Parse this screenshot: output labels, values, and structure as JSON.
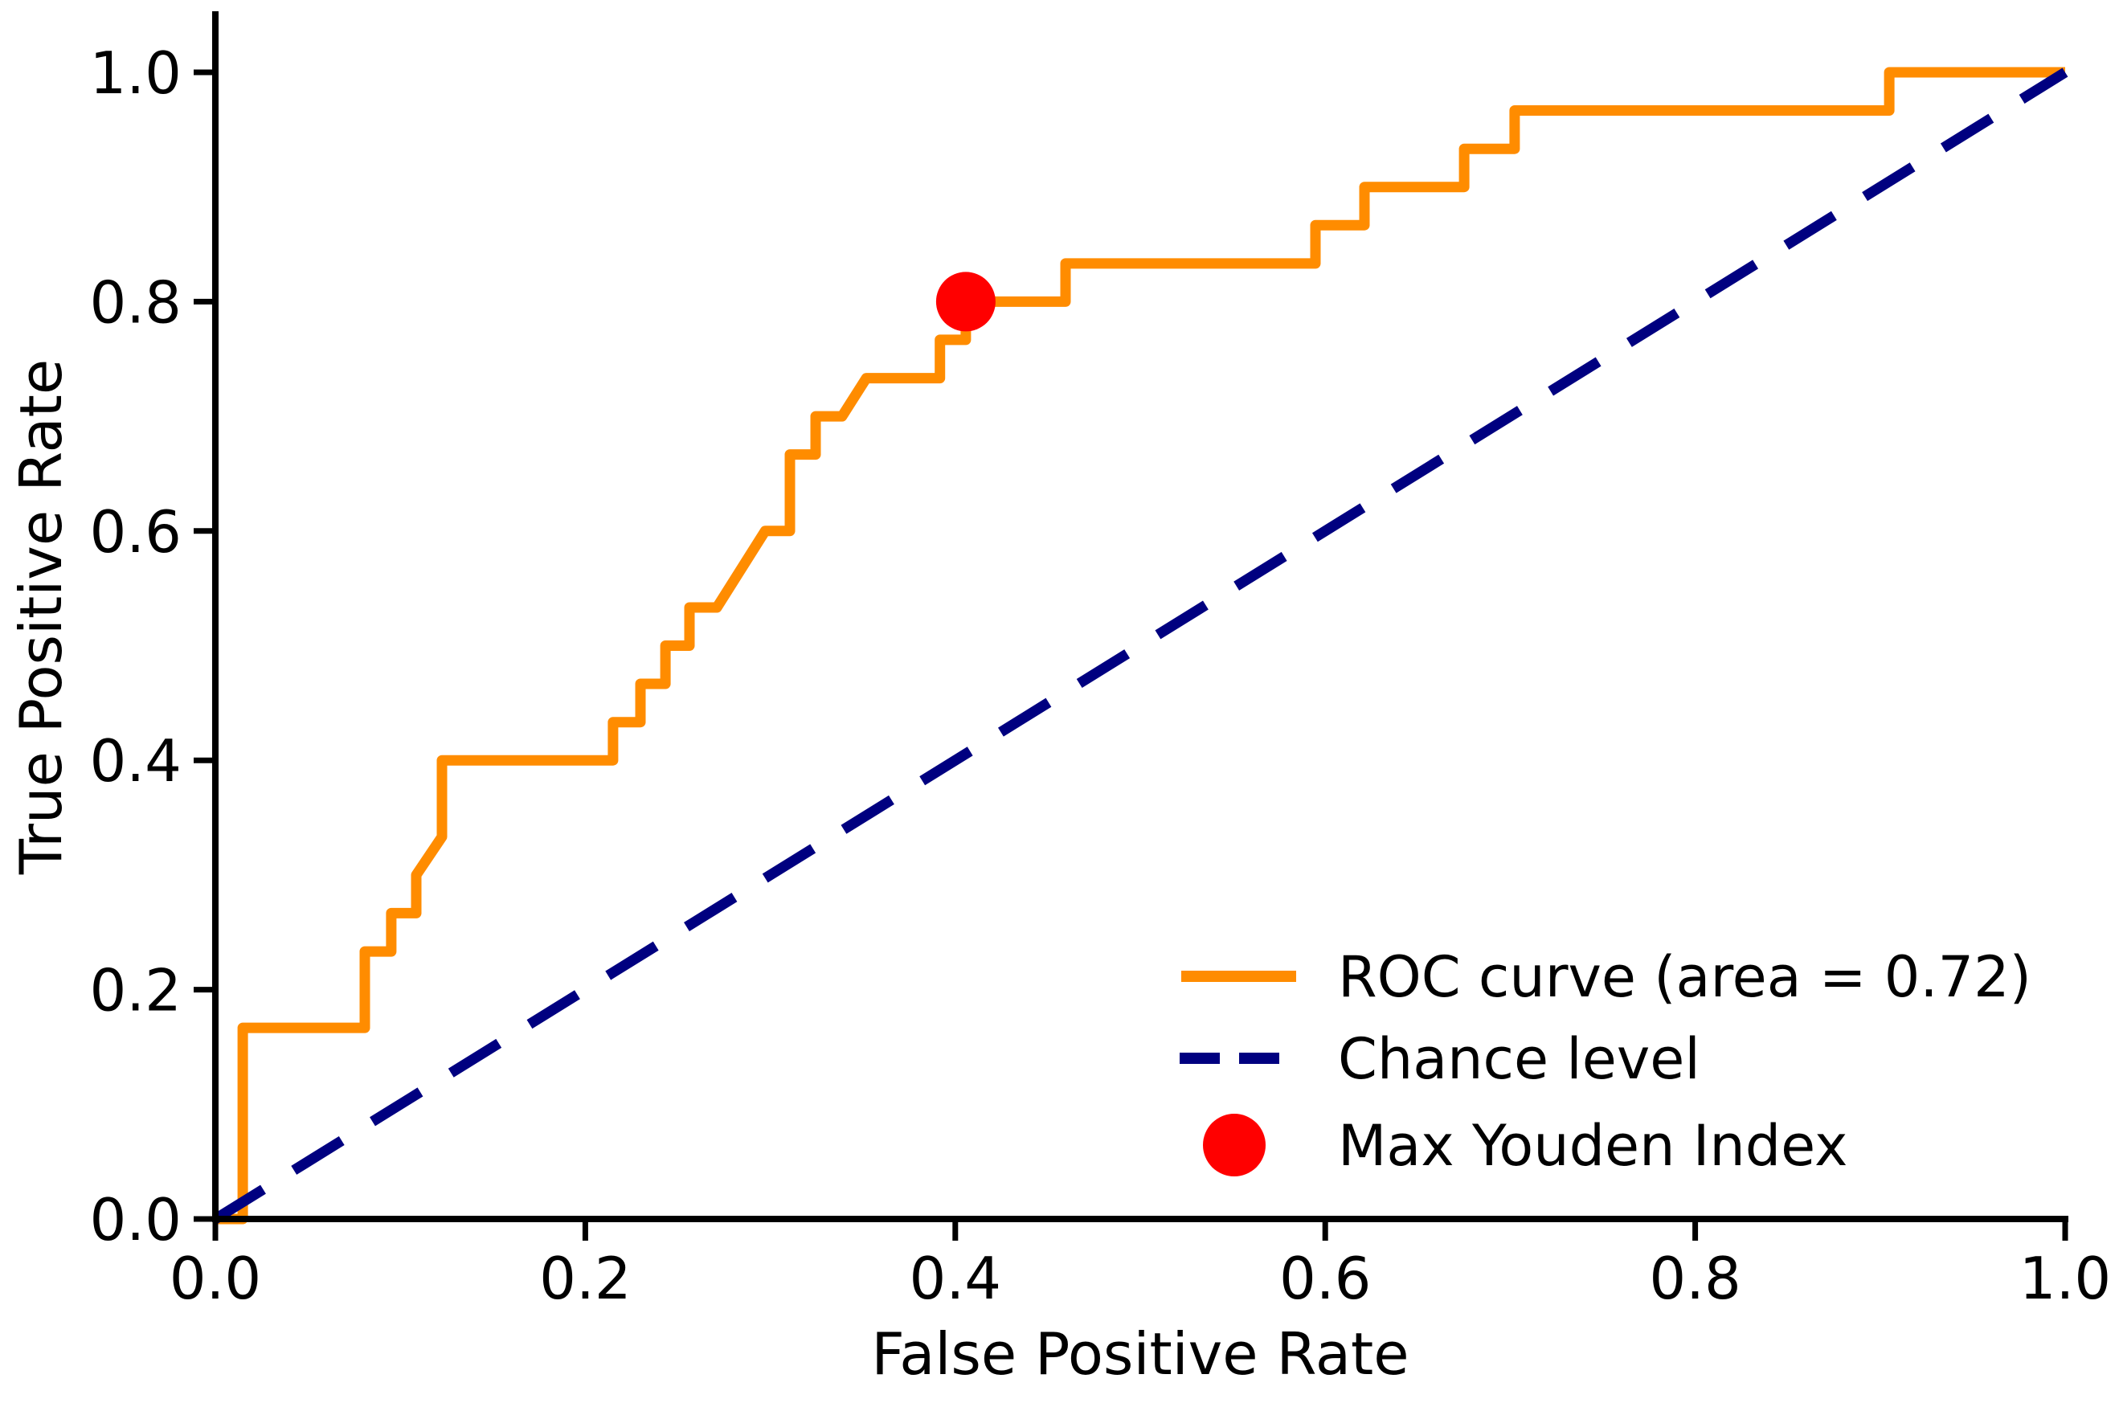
{
  "chart_data": {
    "type": "line",
    "title": "",
    "xlabel": "False Positive Rate",
    "ylabel": "True Positive Rate",
    "xlim": [
      0.0,
      1.0
    ],
    "ylim": [
      0.0,
      1.05
    ],
    "grid": false,
    "legend_position": "lower right",
    "xticks": {
      "values": [
        0.0,
        0.2,
        0.4,
        0.6,
        0.8,
        1.0
      ],
      "labels": [
        "0.0",
        "0.2",
        "0.4",
        "0.6",
        "0.8",
        "1.0"
      ]
    },
    "yticks": {
      "values": [
        0.0,
        0.2,
        0.4,
        0.6,
        0.8,
        1.0
      ],
      "labels": [
        "0.0",
        "0.2",
        "0.4",
        "0.6",
        "0.8",
        "1.0"
      ]
    },
    "series": [
      {
        "name": "ROC curve (area = 0.72)",
        "type": "line",
        "style": "solid",
        "color": "#ff8c00",
        "points": [
          [
            0.0,
            0.0
          ],
          [
            0.0148,
            0.0
          ],
          [
            0.0148,
            0.1667
          ],
          [
            0.0808,
            0.1667
          ],
          [
            0.0808,
            0.2333
          ],
          [
            0.0951,
            0.2333
          ],
          [
            0.0951,
            0.2667
          ],
          [
            0.1086,
            0.2667
          ],
          [
            0.1086,
            0.3
          ],
          [
            0.1225,
            0.3333
          ],
          [
            0.1225,
            0.4
          ],
          [
            0.215,
            0.4
          ],
          [
            0.215,
            0.4333
          ],
          [
            0.2298,
            0.4333
          ],
          [
            0.2298,
            0.4667
          ],
          [
            0.2433,
            0.4667
          ],
          [
            0.2433,
            0.5
          ],
          [
            0.2563,
            0.5
          ],
          [
            0.2563,
            0.5333
          ],
          [
            0.2711,
            0.5333
          ],
          [
            0.2972,
            0.6
          ],
          [
            0.3106,
            0.6
          ],
          [
            0.3106,
            0.6667
          ],
          [
            0.3245,
            0.6667
          ],
          [
            0.3245,
            0.7
          ],
          [
            0.3388,
            0.7
          ],
          [
            0.3519,
            0.7333
          ],
          [
            0.3917,
            0.7333
          ],
          [
            0.3917,
            0.7667
          ],
          [
            0.4057,
            0.7667
          ],
          [
            0.4057,
            0.8
          ],
          [
            0.4596,
            0.8
          ],
          [
            0.4596,
            0.8333
          ],
          [
            0.5947,
            0.8333
          ],
          [
            0.5947,
            0.8667
          ],
          [
            0.6212,
            0.8667
          ],
          [
            0.6212,
            0.9
          ],
          [
            0.6751,
            0.9
          ],
          [
            0.6751,
            0.9333
          ],
          [
            0.7024,
            0.9333
          ],
          [
            0.7024,
            0.9667
          ],
          [
            0.9049,
            0.9667
          ],
          [
            0.9049,
            1.0
          ],
          [
            1.0,
            1.0
          ]
        ]
      },
      {
        "name": "Chance level",
        "type": "line",
        "style": "dashed",
        "color": "#000080",
        "points": [
          [
            0.0,
            0.0
          ],
          [
            1.0,
            1.0
          ]
        ]
      },
      {
        "name": "Max Youden Index",
        "type": "scatter",
        "color": "#ff0000",
        "points": [
          [
            0.4057,
            0.8
          ]
        ]
      }
    ],
    "annotations": {
      "auc": 0.72,
      "max_youden_point": [
        0.41,
        0.8
      ]
    }
  },
  "axes": {
    "spine_color": "#000000",
    "tick_color": "#000000",
    "label_color": "#000000",
    "background": "#ffffff"
  }
}
